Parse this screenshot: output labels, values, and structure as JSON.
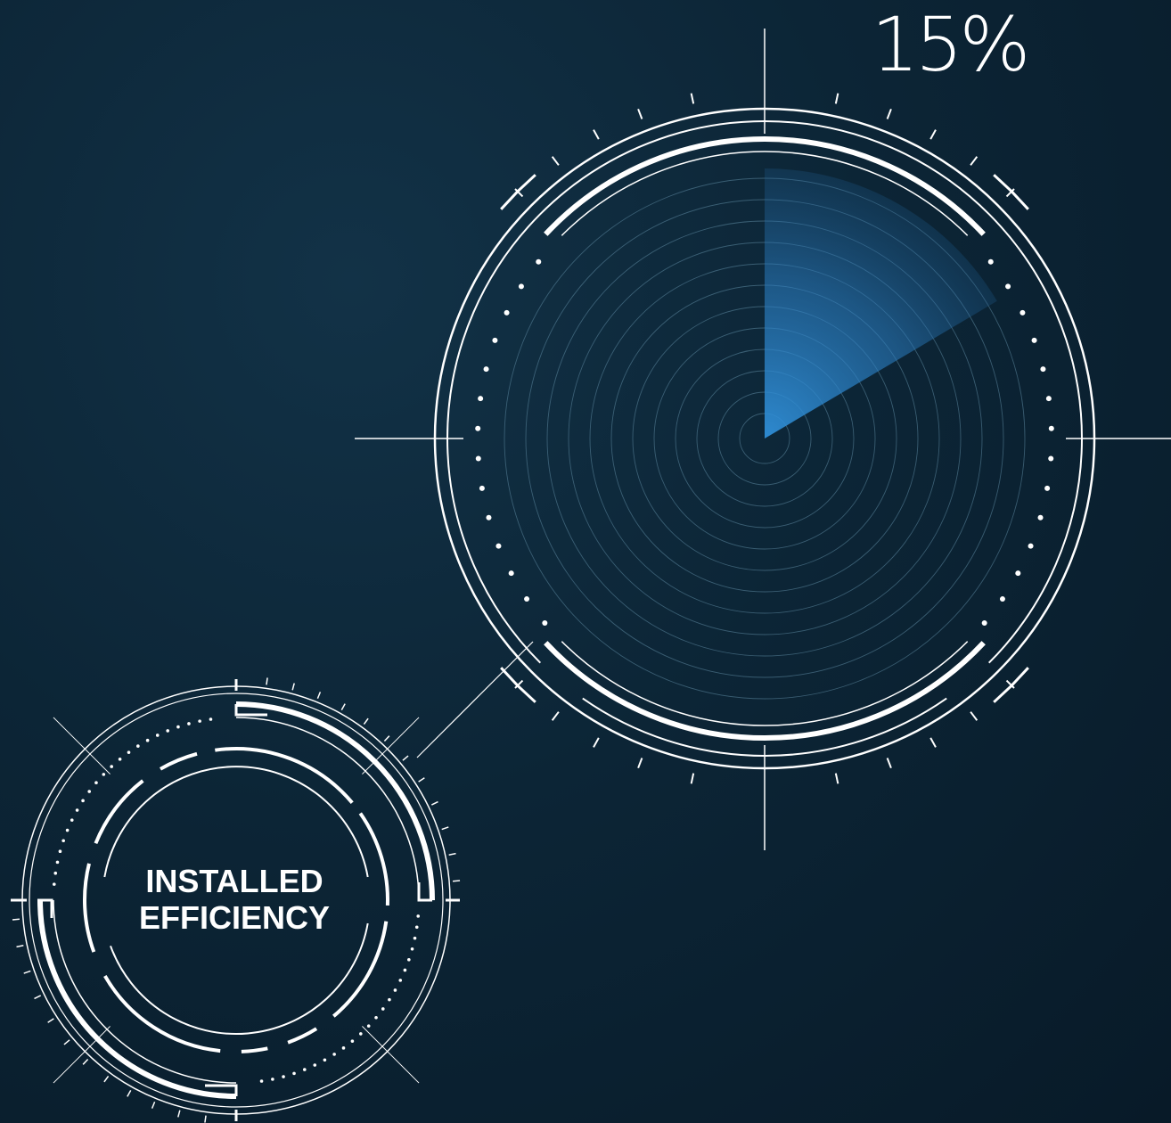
{
  "gauge": {
    "value_label": "15%",
    "fraction": 0.15,
    "sweep_color": "#2f8fd8"
  },
  "caption": {
    "line1": "INSTALLED",
    "line2": "EFFICIENCY"
  },
  "colors": {
    "background": "#0b2233",
    "stroke": "#ffffff"
  }
}
